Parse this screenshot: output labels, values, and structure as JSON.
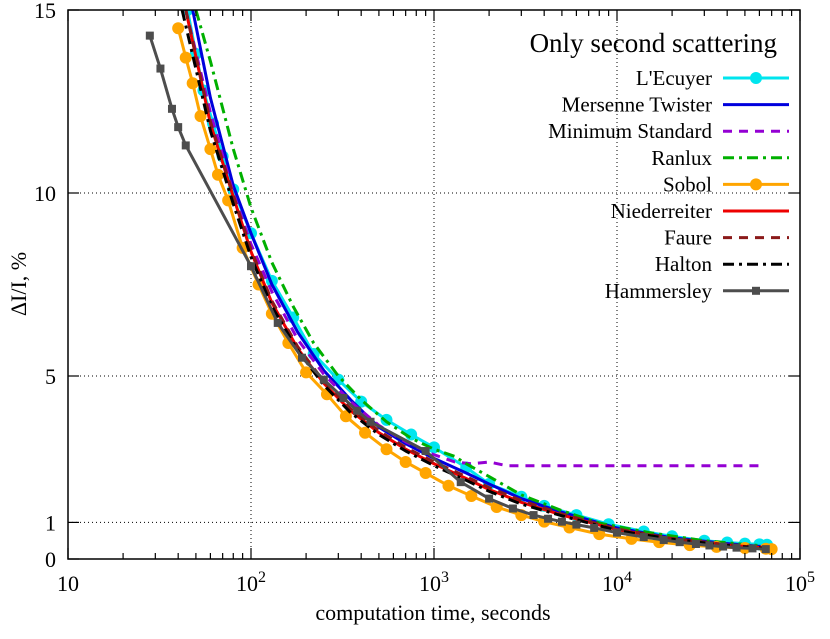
{
  "chart_data": {
    "type": "line",
    "legend_title": "Only second scattering",
    "xlabel": "computation time, seconds",
    "ylabel": "ΔI/I, %",
    "x_scale": "log",
    "xlim": [
      10,
      100000
    ],
    "ylim": [
      0,
      15
    ],
    "grid": true,
    "legend_position": "top-right",
    "x_ticks": [
      {
        "value": 10,
        "base": "10",
        "exp": ""
      },
      {
        "value": 100,
        "base": "10",
        "exp": "2"
      },
      {
        "value": 1000,
        "base": "10",
        "exp": "3"
      },
      {
        "value": 10000,
        "base": "10",
        "exp": "4"
      },
      {
        "value": 100000,
        "base": "10",
        "exp": "5"
      }
    ],
    "y_ticks": [
      {
        "value": 0,
        "label": "0"
      },
      {
        "value": 1,
        "label": "1"
      },
      {
        "value": 5,
        "label": "5"
      },
      {
        "value": 10,
        "label": "10"
      },
      {
        "value": 15,
        "label": "15"
      }
    ],
    "series": [
      {
        "name": "L'Ecuyer",
        "color": "#00e5ee",
        "dash": "solid",
        "marker": "circle",
        "x": [
          45,
          50,
          55,
          62,
          70,
          80,
          100,
          130,
          170,
          220,
          300,
          400,
          550,
          750,
          1000,
          1500,
          2000,
          3000,
          4000,
          6000,
          9000,
          14000,
          20000,
          30000,
          40000,
          50000,
          60000,
          66000
        ],
        "y": [
          15,
          13.8,
          12.8,
          11.9,
          11.0,
          10.1,
          8.9,
          7.6,
          6.6,
          5.6,
          4.9,
          4.3,
          3.8,
          3.4,
          3.05,
          2.5,
          2.05,
          1.7,
          1.45,
          1.2,
          0.95,
          0.75,
          0.62,
          0.5,
          0.45,
          0.42,
          0.4,
          0.39
        ]
      },
      {
        "name": "Mersenne Twister",
        "color": "#0000dd",
        "dash": "solid",
        "marker": "none",
        "x": [
          48,
          60,
          80,
          100,
          130,
          180,
          250,
          350,
          500,
          700,
          1000,
          1500,
          2000,
          3000,
          5000,
          10000,
          20000,
          40000,
          65000
        ],
        "y": [
          15,
          12.6,
          10.2,
          8.9,
          7.5,
          6.2,
          5.15,
          4.35,
          3.6,
          3.15,
          2.75,
          2.35,
          2.05,
          1.65,
          1.28,
          0.85,
          0.58,
          0.42,
          0.33
        ]
      },
      {
        "name": "Minimum Standard",
        "color": "#9400d3",
        "dash": "dashed",
        "marker": "none",
        "x": [
          44,
          60,
          80,
          100,
          130,
          180,
          250,
          350,
          500,
          700,
          1000,
          1300,
          1600,
          2000,
          2500,
          5000,
          10000,
          20000,
          40000,
          60000
        ],
        "y": [
          15,
          12.2,
          10.0,
          8.6,
          7.3,
          6.0,
          5.05,
          4.3,
          3.65,
          3.2,
          2.85,
          2.65,
          2.6,
          2.65,
          2.55,
          2.55,
          2.55,
          2.55,
          2.55,
          2.55
        ]
      },
      {
        "name": "Ranlux",
        "color": "#00b000",
        "dash": "dashdot",
        "marker": "none",
        "x": [
          50,
          60,
          80,
          100,
          130,
          170,
          220,
          300,
          400,
          550,
          750,
          1000,
          1300,
          1500,
          2000,
          3000,
          5000,
          8000,
          15000,
          30000,
          50000,
          66000
        ],
        "y": [
          15,
          13.6,
          11.2,
          9.6,
          8.1,
          6.9,
          5.9,
          5.0,
          4.35,
          3.75,
          3.3,
          3.0,
          2.8,
          2.6,
          2.25,
          1.75,
          1.32,
          0.98,
          0.72,
          0.5,
          0.4,
          0.35
        ]
      },
      {
        "name": "Sobol",
        "color": "#ffa500",
        "dash": "solid",
        "marker": "circle",
        "x": [
          40,
          44,
          48,
          53,
          60,
          66,
          75,
          90,
          110,
          130,
          160,
          200,
          260,
          330,
          420,
          550,
          700,
          900,
          1200,
          1600,
          2200,
          3000,
          4000,
          5500,
          8000,
          12000,
          17000,
          25000,
          35000,
          50000,
          65000,
          70000
        ],
        "y": [
          14.5,
          13.7,
          13.0,
          12.1,
          11.2,
          10.5,
          9.8,
          8.5,
          7.5,
          6.7,
          5.9,
          5.1,
          4.5,
          3.9,
          3.45,
          3.0,
          2.65,
          2.35,
          2.0,
          1.72,
          1.42,
          1.2,
          1.02,
          0.86,
          0.68,
          0.55,
          0.46,
          0.38,
          0.33,
          0.3,
          0.28,
          0.27
        ]
      },
      {
        "name": "Niederreiter",
        "color": "#ee0000",
        "dash": "solid",
        "marker": "none",
        "x": [
          44,
          60,
          80,
          100,
          130,
          180,
          250,
          350,
          500,
          700,
          1000,
          1500,
          2000,
          3000,
          5000,
          10000,
          20000,
          40000,
          65000
        ],
        "y": [
          15,
          11.9,
          9.9,
          8.4,
          7.0,
          5.75,
          4.8,
          4.05,
          3.45,
          3.0,
          2.6,
          2.2,
          1.9,
          1.55,
          1.2,
          0.8,
          0.55,
          0.38,
          0.3
        ]
      },
      {
        "name": "Faure",
        "color": "#8b1a1a",
        "dash": "dashed",
        "marker": "none",
        "x": [
          44,
          60,
          80,
          100,
          130,
          180,
          250,
          350,
          500,
          700,
          1000,
          1500,
          2000,
          3000,
          5000,
          10000,
          20000,
          40000,
          65000
        ],
        "y": [
          15,
          11.95,
          9.95,
          8.45,
          7.05,
          5.8,
          4.85,
          4.1,
          3.5,
          3.05,
          2.65,
          2.25,
          1.95,
          1.6,
          1.23,
          0.82,
          0.56,
          0.39,
          0.31
        ]
      },
      {
        "name": "Halton",
        "color": "#000000",
        "dash": "dashdot",
        "marker": "none",
        "x": [
          42,
          60,
          80,
          100,
          130,
          180,
          250,
          350,
          500,
          700,
          1000,
          1500,
          2000,
          3000,
          5000,
          10000,
          20000,
          40000,
          65000
        ],
        "y": [
          15,
          11.7,
          9.7,
          8.25,
          6.9,
          5.7,
          4.75,
          4.0,
          3.4,
          2.95,
          2.55,
          2.15,
          1.85,
          1.5,
          1.18,
          0.78,
          0.54,
          0.37,
          0.29
        ]
      },
      {
        "name": "Hammersley",
        "color": "#4d4d4d",
        "dash": "solid",
        "marker": "square",
        "x": [
          28,
          32,
          37,
          40,
          44,
          100,
          140,
          190,
          250,
          320,
          380,
          450,
          900,
          1400,
          2000,
          2700,
          3500,
          4200,
          5000,
          6000,
          7500,
          10000,
          14000,
          18000,
          22000,
          27000,
          32000,
          38000,
          45000,
          55000,
          65000
        ],
        "y": [
          14.3,
          13.4,
          12.3,
          11.8,
          11.3,
          8.0,
          6.45,
          5.5,
          4.9,
          4.4,
          4.05,
          3.75,
          2.95,
          2.1,
          1.65,
          1.38,
          1.2,
          1.1,
          1.02,
          0.94,
          0.85,
          0.72,
          0.6,
          0.52,
          0.46,
          0.41,
          0.37,
          0.34,
          0.31,
          0.29,
          0.27
        ]
      }
    ]
  }
}
